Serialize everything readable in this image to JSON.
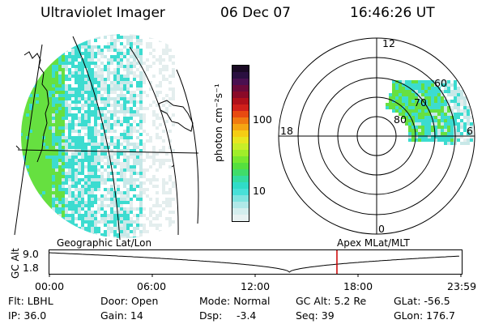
{
  "header": {
    "instrument": "Ultraviolet Imager",
    "date": "06 Dec 07",
    "time": "16:46:26 UT"
  },
  "colorbar": {
    "label": "photon cm⁻²s⁻¹",
    "ticks": [
      "100",
      "10"
    ],
    "colors": [
      "#1a0a24",
      "#2a1040",
      "#4a1050",
      "#6a0a3a",
      "#8a0a28",
      "#b0101a",
      "#d0201a",
      "#e84a10",
      "#f07a10",
      "#f5a512",
      "#f5cd14",
      "#e8e620",
      "#c8ee28",
      "#a0ee2a",
      "#78e830",
      "#55e03e",
      "#40dc6a",
      "#34dca0",
      "#30dcc8",
      "#48e0d8",
      "#80e4e0",
      "#b0e8e8",
      "#d4eeee",
      "#e8f2f2"
    ]
  },
  "polar": {
    "mlt_labels": [
      "12",
      "18",
      "6",
      "0"
    ],
    "lat_labels": [
      "60",
      "70",
      "80"
    ]
  },
  "panels": {
    "left_label": "Geographic Lat/Lon",
    "right_label": "Apex  MLat/MLT"
  },
  "altitude_plot": {
    "ylabel": "GC Alt",
    "yticks": [
      "9.0",
      "1.8"
    ],
    "xticks": [
      "00:00",
      "06:00",
      "12:00",
      "18:00",
      "23:59"
    ],
    "current_hour": 16.77,
    "marker_color": "#cc0000"
  },
  "info": {
    "flt": "Flt: LBHL",
    "door": "Door: Open",
    "mode": "Mode: Normal",
    "gc_alt": "GC Alt: 5.2 Re",
    "glat": "GLat: -56.5",
    "ip": "IP: 36.0",
    "gain": "Gain: 14",
    "dsp_label": "Dsp:",
    "dsp_value": "-3.4",
    "seq": "Seq: 39",
    "glon": "GLon: 176.7"
  }
}
